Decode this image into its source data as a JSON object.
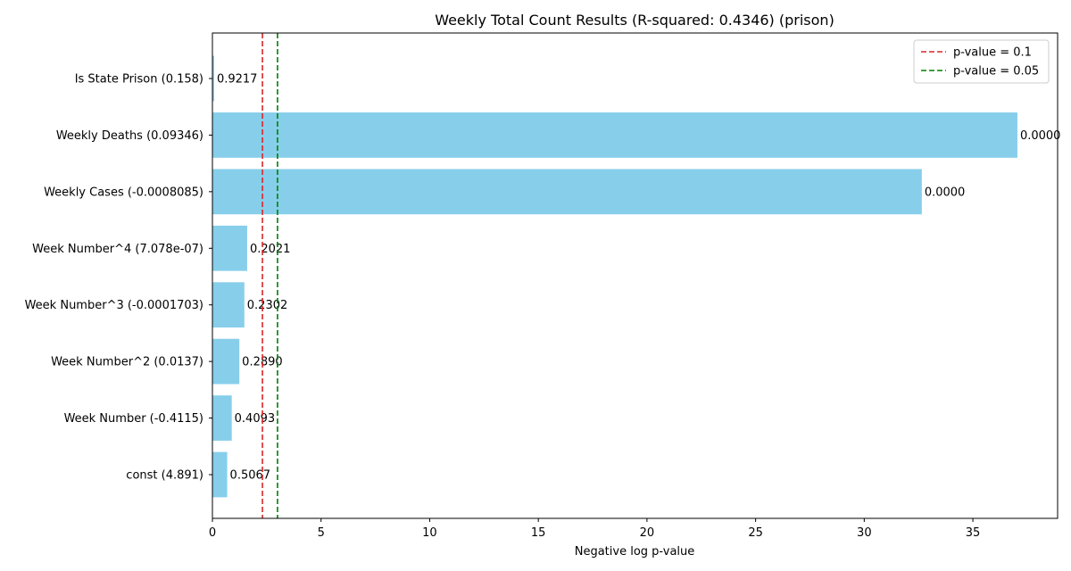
{
  "chart_data": {
    "type": "bar",
    "orientation": "horizontal",
    "title": "Weekly Total Count Results (R-squared: 0.4346) (prison)",
    "xlabel": "Negative log p-value",
    "ylabel": "",
    "xlim": [
      0,
      38.9
    ],
    "x_ticks": [
      "0",
      "5",
      "10",
      "15",
      "20",
      "25",
      "30",
      "35"
    ],
    "x_tick_values": [
      0,
      5,
      10,
      15,
      20,
      25,
      30,
      35
    ],
    "categories": [
      "Is State Prison (0.158)",
      "Weekly Deaths (0.09346)",
      "Weekly Cases (-0.0008085)",
      "Week Number^4 (7.078e-07)",
      "Week Number^3 (-0.0001703)",
      "Week Number^2 (0.0137)",
      "Week Number (-0.4115)",
      "const (4.891)"
    ],
    "values": [
      0.08,
      37.05,
      32.65,
      1.6,
      1.47,
      1.24,
      0.89,
      0.68
    ],
    "data_labels": [
      "0.9217",
      "0.0000",
      "0.0000",
      "0.2021",
      "0.2302",
      "0.2890",
      "0.4093",
      "0.5067"
    ],
    "bar_color": "#87ceeb",
    "reference_lines": [
      {
        "name": "p-value = 0.1",
        "value": 2.3026,
        "color": "#d62728",
        "style": "dashed"
      },
      {
        "name": "p-value = 0.05",
        "value": 2.9957,
        "color": "#008000",
        "style": "dashed"
      }
    ],
    "legend": {
      "placement": "top-right"
    },
    "grid": false
  }
}
